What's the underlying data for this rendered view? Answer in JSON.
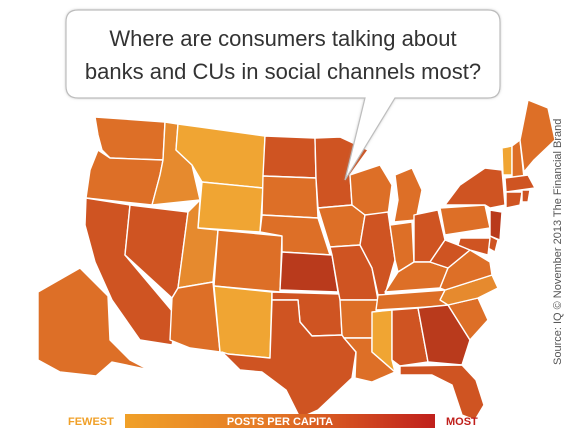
{
  "title": {
    "line1": "Where are consumers talking about",
    "line2": "banks and CUs in social channels most?"
  },
  "source": "Source: IQ  © November 2013 The Financial Brand",
  "legend": {
    "low_label": "FEWEST",
    "center_label": "POSTS PER CAPITA",
    "high_label": "MOST",
    "colors": {
      "low": "#f0a028",
      "mid": "#e57a25",
      "high": "#c0201c"
    }
  },
  "map_data": {
    "metric": "posts per capita",
    "palette": {
      "fewest": "#f0a533",
      "low": "#e68a2e",
      "medium": "#dd6f27",
      "high": "#cf5422",
      "highest": "#b93a1c"
    },
    "states": [
      {
        "name": "Washington",
        "level": "medium"
      },
      {
        "name": "Oregon",
        "level": "medium"
      },
      {
        "name": "California",
        "level": "high"
      },
      {
        "name": "Nevada",
        "level": "high"
      },
      {
        "name": "Idaho",
        "level": "low"
      },
      {
        "name": "Montana",
        "level": "fewest"
      },
      {
        "name": "Wyoming",
        "level": "fewest"
      },
      {
        "name": "Utah",
        "level": "low"
      },
      {
        "name": "Arizona",
        "level": "medium"
      },
      {
        "name": "Colorado",
        "level": "medium"
      },
      {
        "name": "New Mexico",
        "level": "fewest"
      },
      {
        "name": "North Dakota",
        "level": "high"
      },
      {
        "name": "South Dakota",
        "level": "medium"
      },
      {
        "name": "Nebraska",
        "level": "medium"
      },
      {
        "name": "Kansas",
        "level": "highest"
      },
      {
        "name": "Oklahoma",
        "level": "high"
      },
      {
        "name": "Texas",
        "level": "high"
      },
      {
        "name": "Minnesota",
        "level": "high"
      },
      {
        "name": "Iowa",
        "level": "medium"
      },
      {
        "name": "Missouri",
        "level": "high"
      },
      {
        "name": "Arkansas",
        "level": "medium"
      },
      {
        "name": "Louisiana",
        "level": "medium"
      },
      {
        "name": "Wisconsin",
        "level": "medium"
      },
      {
        "name": "Illinois",
        "level": "high"
      },
      {
        "name": "Michigan",
        "level": "medium"
      },
      {
        "name": "Indiana",
        "level": "medium"
      },
      {
        "name": "Ohio",
        "level": "high"
      },
      {
        "name": "Kentucky",
        "level": "medium"
      },
      {
        "name": "Tennessee",
        "level": "medium"
      },
      {
        "name": "Mississippi",
        "level": "fewest"
      },
      {
        "name": "Alabama",
        "level": "high"
      },
      {
        "name": "Georgia",
        "level": "highest"
      },
      {
        "name": "Florida",
        "level": "high"
      },
      {
        "name": "South Carolina",
        "level": "medium"
      },
      {
        "name": "North Carolina",
        "level": "low"
      },
      {
        "name": "Virginia",
        "level": "medium"
      },
      {
        "name": "West Virginia",
        "level": "high"
      },
      {
        "name": "Pennsylvania",
        "level": "medium"
      },
      {
        "name": "New York",
        "level": "high"
      },
      {
        "name": "Vermont",
        "level": "fewest"
      },
      {
        "name": "New Hampshire",
        "level": "medium"
      },
      {
        "name": "Maine",
        "level": "medium"
      },
      {
        "name": "Massachusetts",
        "level": "high"
      },
      {
        "name": "Connecticut",
        "level": "high"
      },
      {
        "name": "Rhode Island",
        "level": "high"
      },
      {
        "name": "New Jersey",
        "level": "highest"
      },
      {
        "name": "Delaware",
        "level": "high"
      },
      {
        "name": "Maryland",
        "level": "high"
      },
      {
        "name": "Alaska",
        "level": "medium"
      }
    ]
  }
}
